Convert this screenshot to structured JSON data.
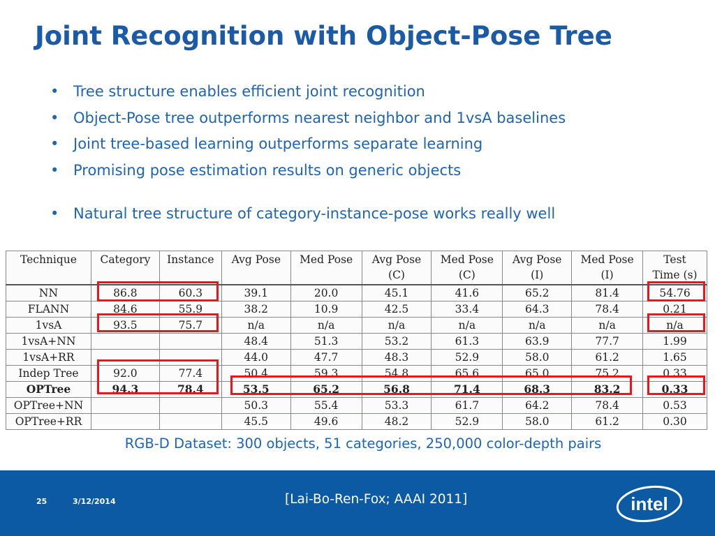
{
  "title": "Joint Recognition with Object-Pose Tree",
  "bullets": [
    "Tree structure enables efficient joint recognition",
    "Object-Pose tree outperforms nearest neighbor and 1vsA baselines",
    "Joint tree-based learning outperforms separate learning",
    "Promising pose estimation results on generic objects",
    "Natural tree structure of category-instance-pose works really well"
  ],
  "bullet_glyph": "•",
  "table": {
    "headers": [
      [
        "Technique"
      ],
      [
        "Category"
      ],
      [
        "Instance"
      ],
      [
        "Avg Pose"
      ],
      [
        "Med Pose"
      ],
      [
        "Avg Pose",
        "(C)"
      ],
      [
        "Med Pose",
        "(C)"
      ],
      [
        "Avg Pose",
        "(I)"
      ],
      [
        "Med Pose",
        "(I)"
      ],
      [
        "Test",
        "Time (s)"
      ]
    ],
    "rows": [
      [
        "NN",
        "86.8",
        "60.3",
        "39.1",
        "20.0",
        "45.1",
        "41.6",
        "65.2",
        "81.4",
        "54.76"
      ],
      [
        "FLANN",
        "84.6",
        "55.9",
        "38.2",
        "10.9",
        "42.5",
        "33.4",
        "64.3",
        "78.4",
        "0.21"
      ],
      [
        "1vsA",
        "93.5",
        "75.7",
        "n/a",
        "n/a",
        "n/a",
        "n/a",
        "n/a",
        "n/a",
        "n/a"
      ],
      [
        "1vsA+NN",
        "",
        "",
        "48.4",
        "51.3",
        "53.2",
        "61.3",
        "63.9",
        "77.7",
        "1.99"
      ],
      [
        "1vsA+RR",
        "",
        "",
        "44.0",
        "47.7",
        "48.3",
        "52.9",
        "58.0",
        "61.2",
        "1.65"
      ],
      [
        "Indep Tree",
        "92.0",
        "77.4",
        "50.4",
        "59.3",
        "54.8",
        "65.6",
        "65.0",
        "75.2",
        "0.33"
      ],
      [
        "OPTree",
        "94.3",
        "78.4",
        "53.5",
        "65.2",
        "56.8",
        "71.4",
        "68.3",
        "83.2",
        "0.33"
      ],
      [
        "OPTree+NN",
        "",
        "",
        "50.3",
        "55.4",
        "53.3",
        "61.7",
        "64.2",
        "78.4",
        "0.53"
      ],
      [
        "OPTree+RR",
        "",
        "",
        "45.5",
        "49.6",
        "48.2",
        "52.9",
        "58.0",
        "61.2",
        "0.30"
      ]
    ],
    "highlight_color": "#e8171c"
  },
  "caption": "RGB-D Dataset: 300 objects, 51 categories, 250,000 color-depth pairs",
  "footer": {
    "slide_number": "25",
    "date": "3/12/2014",
    "reference": "[Lai-Bo-Ren-Fox; AAAI 2011]",
    "logo_text": "intel",
    "background_color": "#0b5aa3"
  },
  "colors": {
    "title": "#1a5aa6",
    "text": "#1e64b4"
  }
}
